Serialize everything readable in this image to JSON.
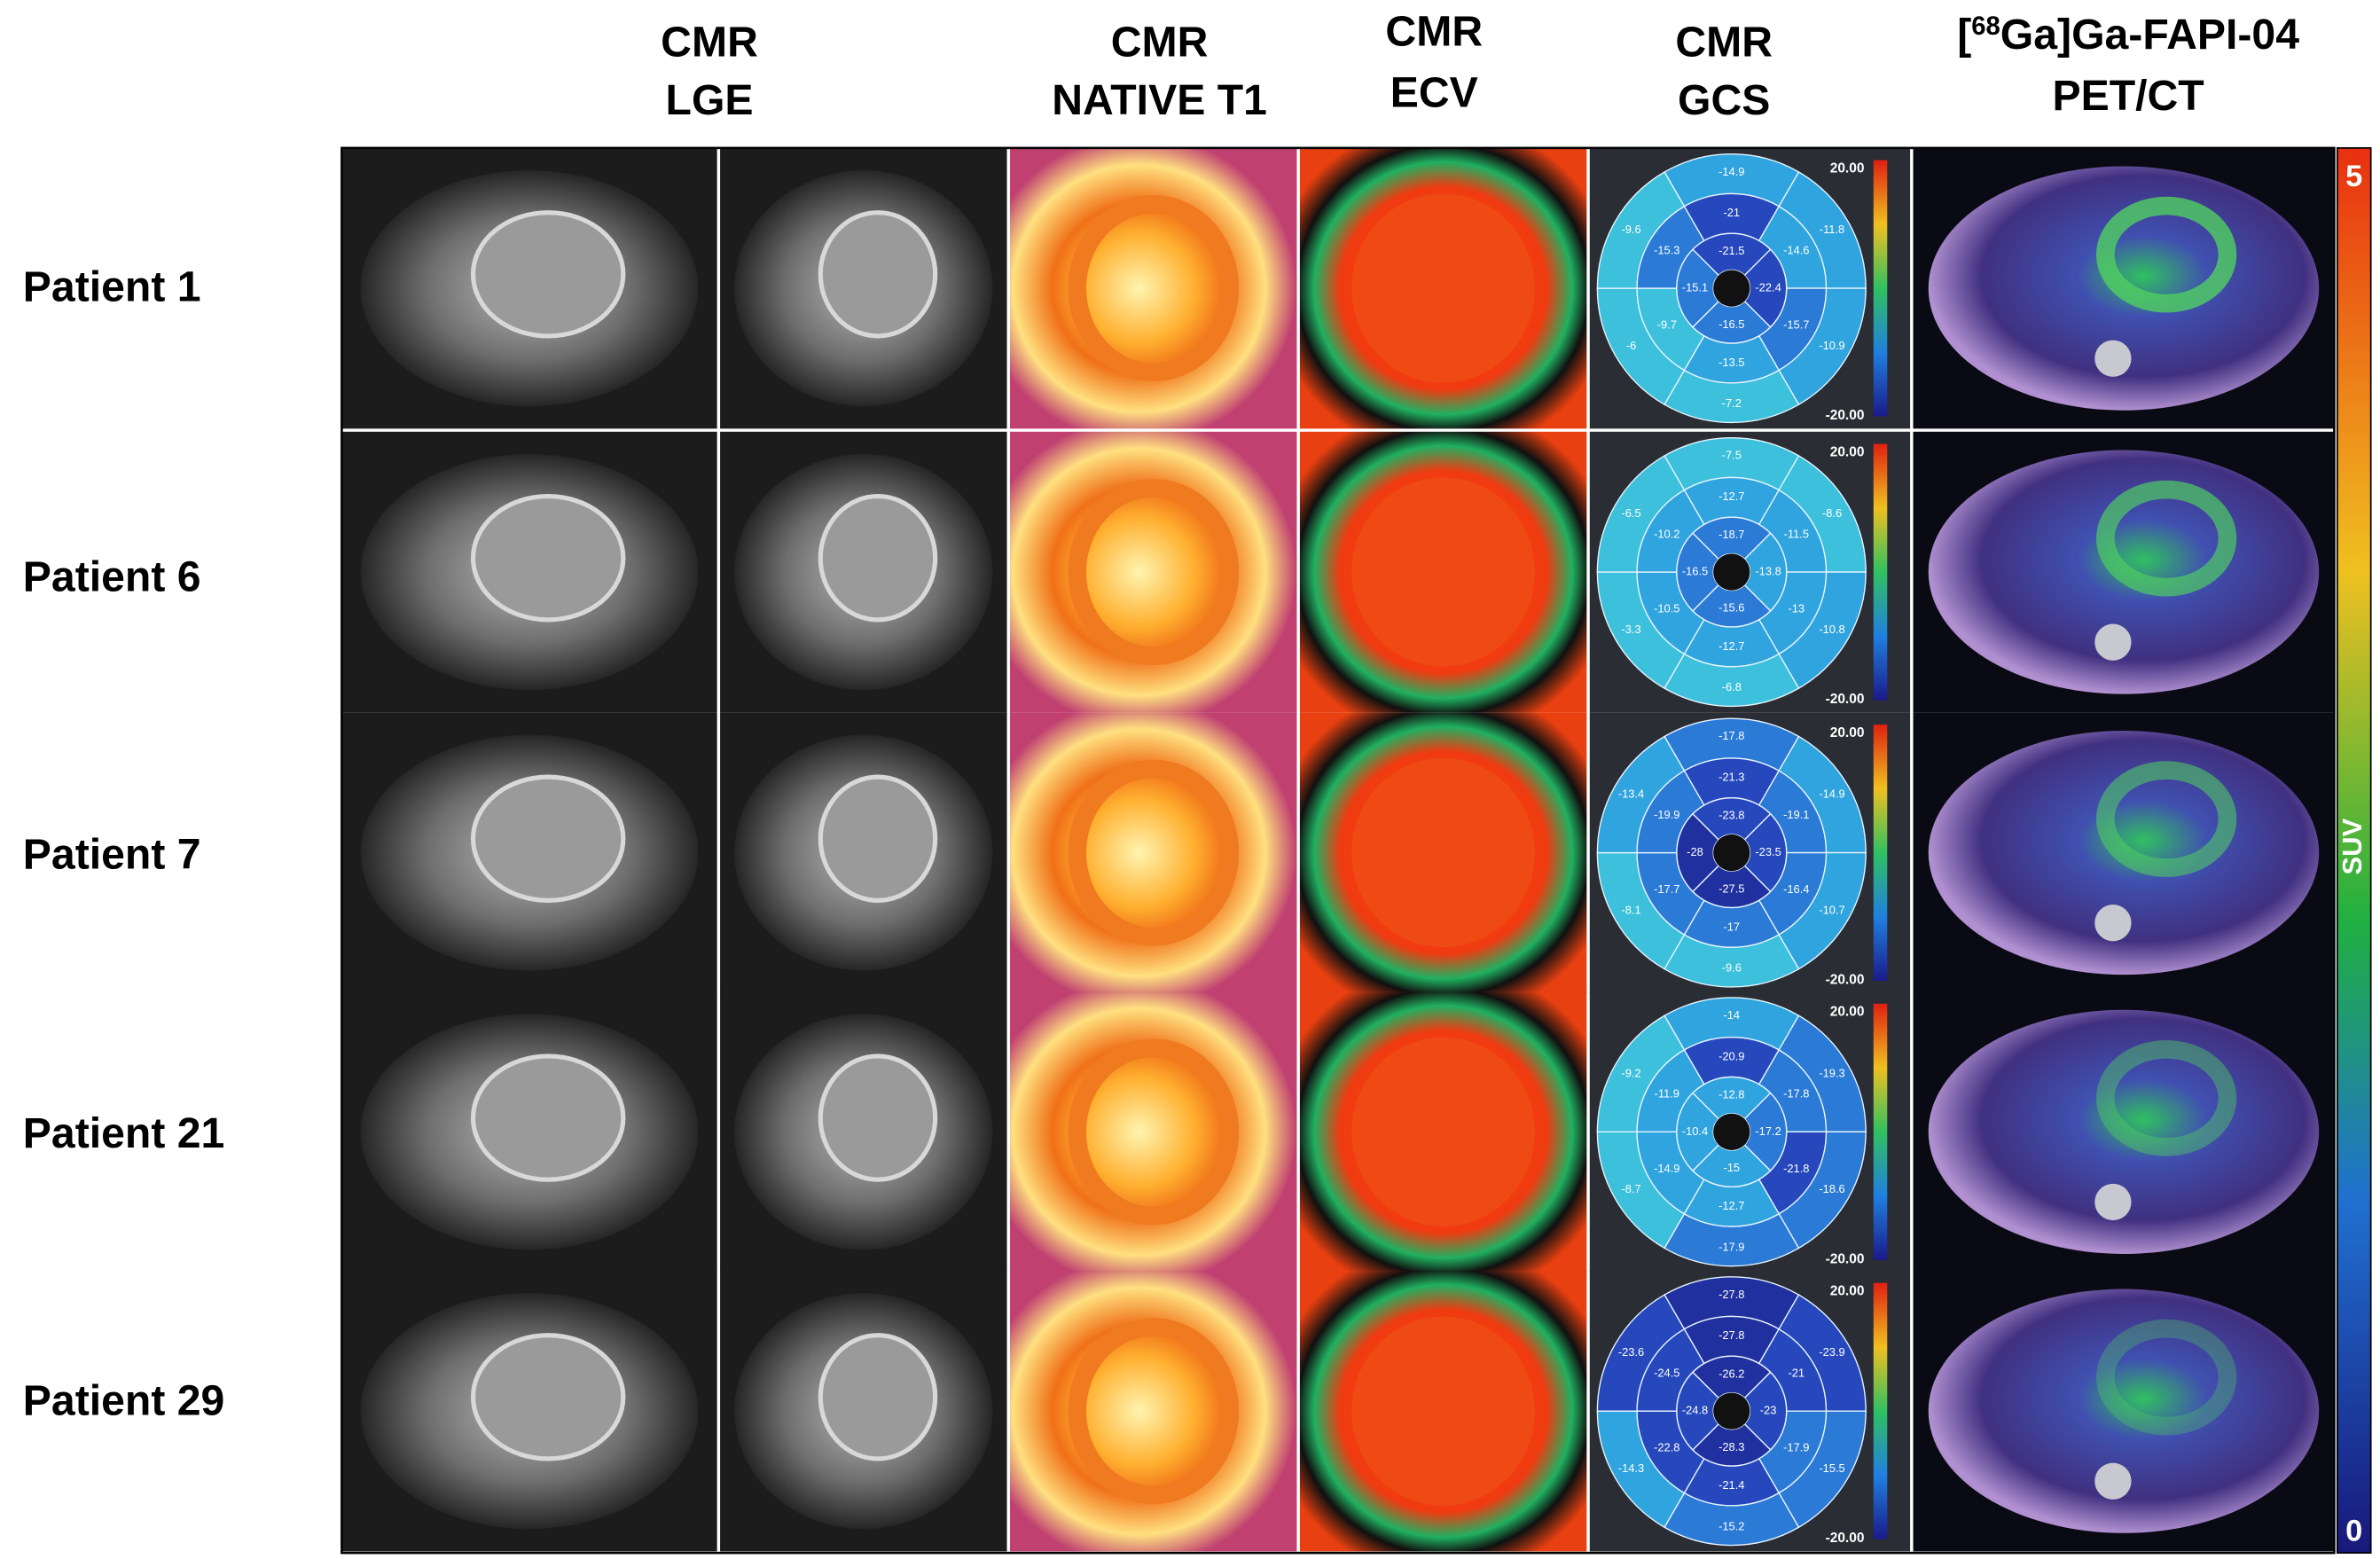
{
  "columns": [
    {
      "lines": [
        "CMR",
        "LGE"
      ]
    },
    {
      "lines": [
        "CMR",
        "NATIVE T1"
      ]
    },
    {
      "lines": [
        "CMR",
        "ECV"
      ]
    },
    {
      "lines": [
        "CMR",
        "GCS"
      ]
    },
    {
      "pre": "[",
      "sup": "68",
      "post": "Ga]Ga-FAPI-04",
      "line2": "PET/CT"
    }
  ],
  "patients": [
    {
      "label": "Patient 1",
      "gcs": {
        "outer": [
          -14.9,
          -11.8,
          -10.9,
          -7.2,
          -6.0,
          -9.6
        ],
        "middle": [
          -21.0,
          -14.6,
          -15.7,
          -13.5,
          -9.7,
          -15.3
        ],
        "inner": [
          -21.5,
          -22.4,
          -16.5,
          -15.1
        ]
      }
    },
    {
      "label": "Patient 6",
      "gcs": {
        "outer": [
          -7.5,
          -8.6,
          -10.8,
          -6.8,
          -3.3,
          -6.5
        ],
        "middle": [
          -12.7,
          -11.5,
          -13.0,
          -12.7,
          -10.5,
          -10.2
        ],
        "inner": [
          -18.7,
          -13.8,
          -15.6,
          -16.5
        ]
      }
    },
    {
      "label": "Patient 7",
      "gcs": {
        "outer": [
          -17.8,
          -14.9,
          -10.7,
          -9.6,
          -8.1,
          -13.4
        ],
        "middle": [
          -21.3,
          -19.1,
          -16.4,
          -17.0,
          -17.7,
          -19.9
        ],
        "inner": [
          -23.8,
          -23.5,
          -27.5,
          -28.0
        ]
      }
    },
    {
      "label": "Patient 21",
      "gcs": {
        "outer": [
          -14.0,
          -19.3,
          -18.6,
          -17.9,
          -8.7,
          -9.2
        ],
        "middle": [
          -20.9,
          -17.8,
          -21.8,
          -12.7,
          -14.9,
          -11.9
        ],
        "inner": [
          -12.8,
          -17.2,
          -15.0,
          -10.4
        ]
      }
    },
    {
      "label": "Patient 29",
      "gcs": {
        "outer": [
          -27.8,
          -23.9,
          -15.5,
          -15.2,
          -14.3,
          -23.6
        ],
        "middle": [
          -27.8,
          -21.0,
          -17.9,
          -21.4,
          -22.8,
          -24.5
        ],
        "inner": [
          -26.2,
          -23.0,
          -28.3,
          -24.8
        ]
      }
    }
  ],
  "gcs_scale": {
    "max": "20.00",
    "min": "-20.00"
  },
  "suv_scale": {
    "max": "5",
    "min": "0",
    "label": "SUV"
  }
}
